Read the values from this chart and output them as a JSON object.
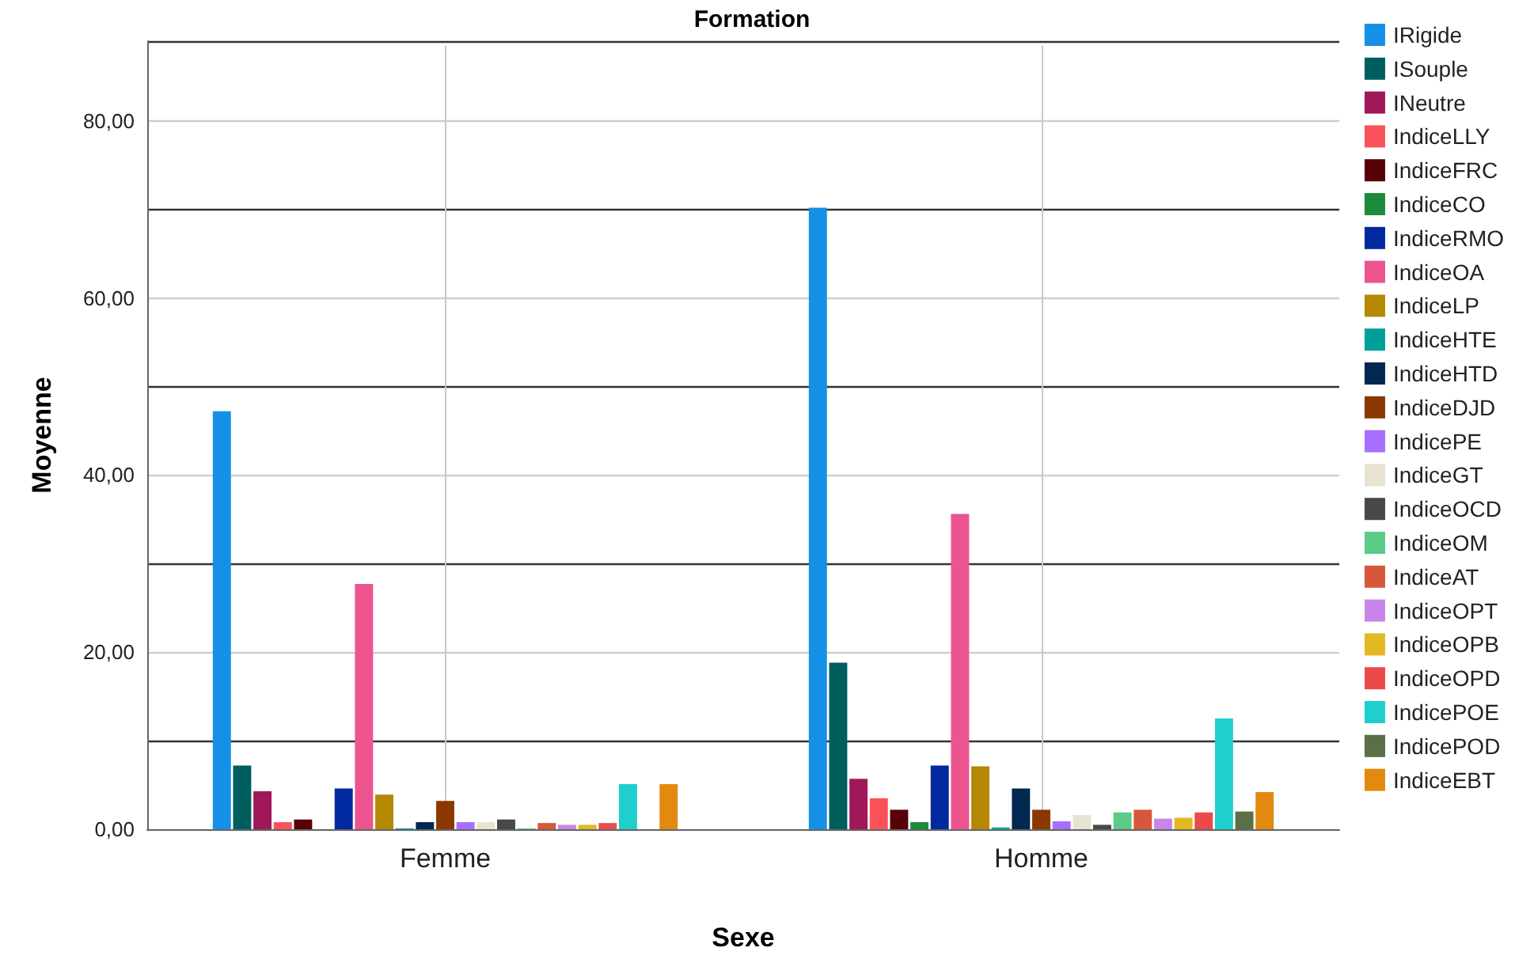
{
  "chart_data": {
    "type": "bar",
    "title": "Formation",
    "xlabel": "Sexe",
    "ylabel": "Moyenne",
    "categories": [
      "Femme",
      "Homme"
    ],
    "series": [
      {
        "name": "IRigide",
        "color": "#1491e6",
        "values": [
          47.2,
          70.2
        ]
      },
      {
        "name": "ISouple",
        "color": "#005e5e",
        "values": [
          7.2,
          18.8
        ]
      },
      {
        "name": "INeutre",
        "color": "#a0185a",
        "values": [
          4.3,
          5.7
        ]
      },
      {
        "name": "IndiceLLY",
        "color": "#fa525b",
        "values": [
          0.8,
          3.5
        ]
      },
      {
        "name": "IndiceFRC",
        "color": "#580008",
        "values": [
          1.1,
          2.2
        ]
      },
      {
        "name": "IndiceCO",
        "color": "#1e8a3c",
        "values": [
          0,
          0.8
        ]
      },
      {
        "name": "IndiceRMO",
        "color": "#0029a0",
        "values": [
          4.6,
          7.2
        ]
      },
      {
        "name": "IndiceOA",
        "color": "#ec5490",
        "values": [
          27.7,
          35.6
        ]
      },
      {
        "name": "IndiceLP",
        "color": "#b48800",
        "values": [
          3.9,
          7.1
        ]
      },
      {
        "name": "IndiceHTE",
        "color": "#00a09a",
        "values": [
          0.1,
          0.2
        ]
      },
      {
        "name": "IndiceHTD",
        "color": "#002850",
        "values": [
          0.8,
          4.6
        ]
      },
      {
        "name": "IndiceDJD",
        "color": "#8a3800",
        "values": [
          3.2,
          2.2
        ]
      },
      {
        "name": "IndicePE",
        "color": "#a570ff",
        "values": [
          0.8,
          0.9
        ]
      },
      {
        "name": "IndiceGT",
        "color": "#e8e2d0",
        "values": [
          0.8,
          1.6
        ]
      },
      {
        "name": "IndiceOCD",
        "color": "#484848",
        "values": [
          1.1,
          0.5
        ]
      },
      {
        "name": "IndiceOM",
        "color": "#5bcb88",
        "values": [
          0.1,
          1.9
        ]
      },
      {
        "name": "IndiceAT",
        "color": "#d6573a",
        "values": [
          0.7,
          2.2
        ]
      },
      {
        "name": "IndiceOPT",
        "color": "#c986e8",
        "values": [
          0.5,
          1.2
        ]
      },
      {
        "name": "IndiceOPB",
        "color": "#e2b920",
        "values": [
          0.5,
          1.3
        ]
      },
      {
        "name": "IndiceOPD",
        "color": "#ec4a4a",
        "values": [
          0.7,
          1.9
        ]
      },
      {
        "name": "IndicePOE",
        "color": "#1ecfcd",
        "values": [
          5.1,
          12.5
        ]
      },
      {
        "name": "IndicePOD",
        "color": "#5a6e48",
        "values": [
          null,
          2.0
        ]
      },
      {
        "name": "IndiceEBT",
        "color": "#e28a10",
        "values": [
          5.1,
          4.2
        ]
      }
    ],
    "ylim": [
      0,
      89
    ],
    "yticks": [
      {
        "value": 0,
        "label": "0,00"
      },
      {
        "value": 10,
        "label": null
      },
      {
        "value": 20,
        "label": "20,00"
      },
      {
        "value": 30,
        "label": null
      },
      {
        "value": 40,
        "label": "40,00"
      },
      {
        "value": 50,
        "label": null
      },
      {
        "value": 60,
        "label": "60,00"
      },
      {
        "value": 70,
        "label": null
      },
      {
        "value": 80,
        "label": "80,00"
      }
    ],
    "grid": true,
    "legend": "right"
  }
}
